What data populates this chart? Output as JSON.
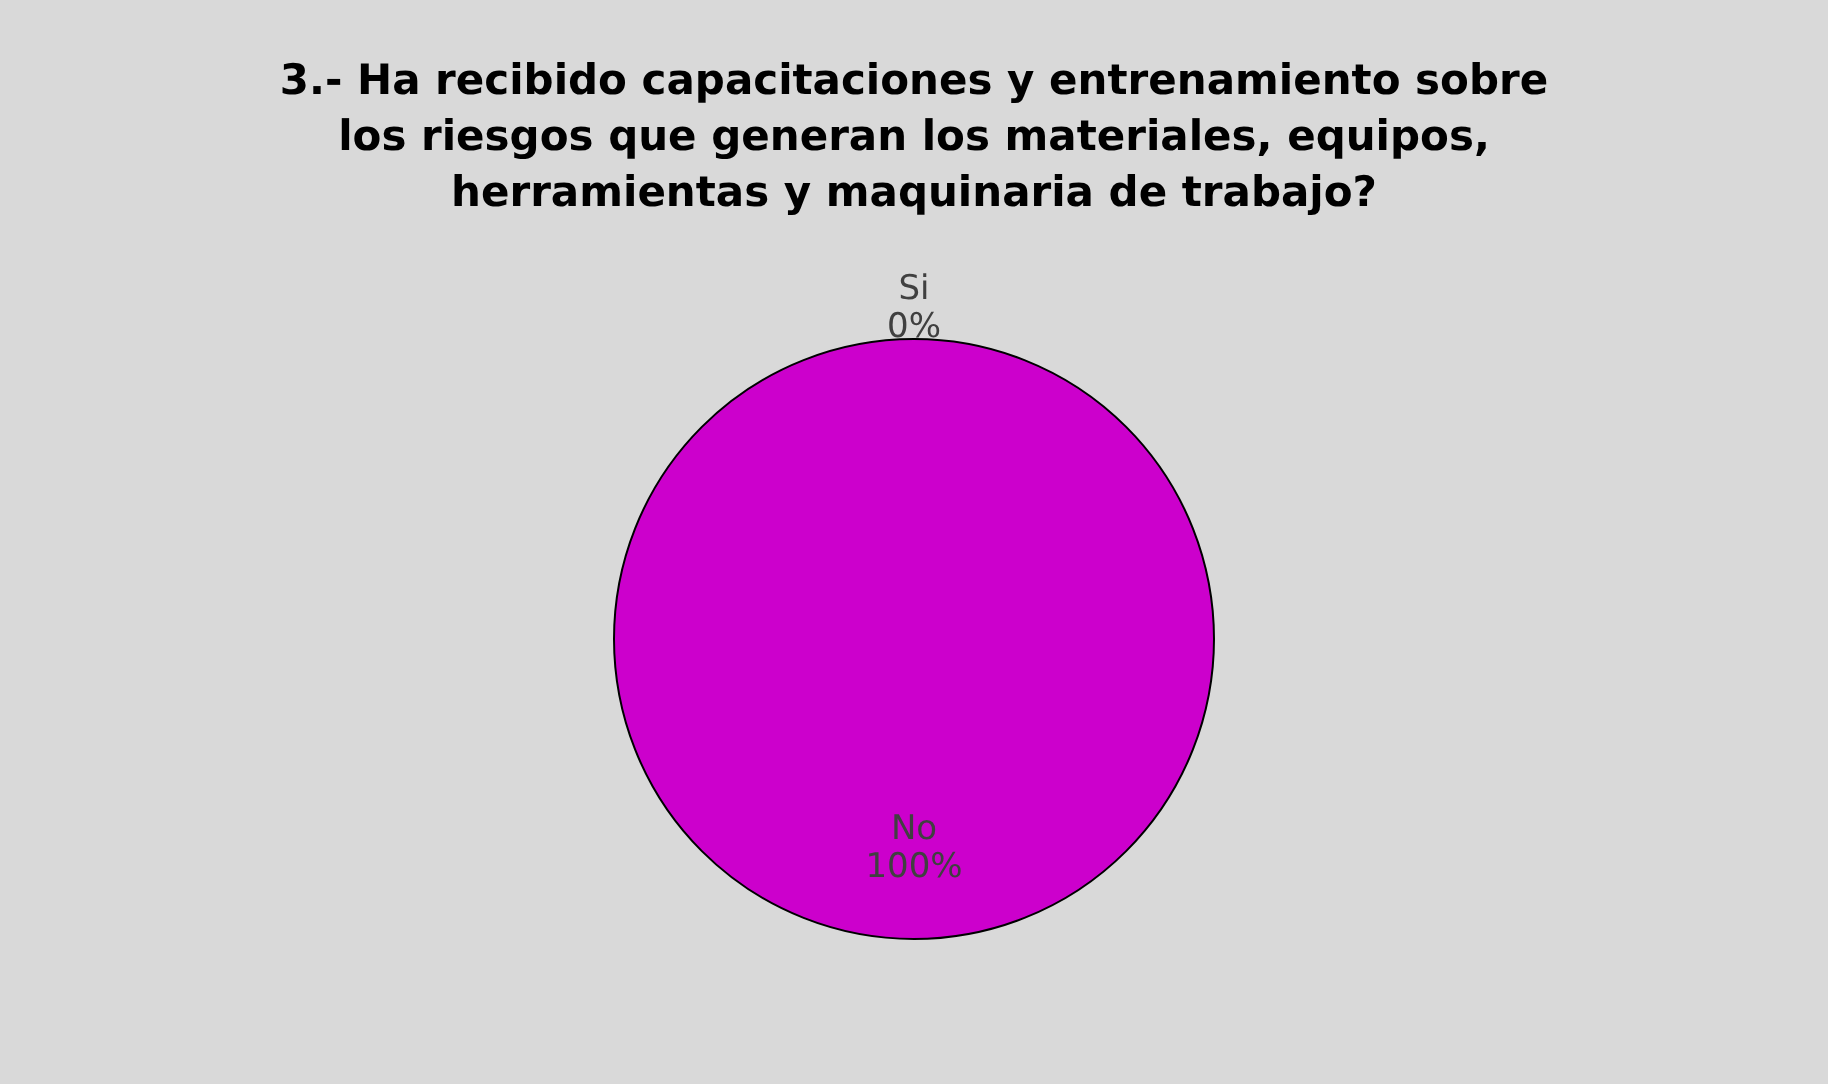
{
  "chart_data": {
    "type": "pie",
    "title": "3.- Ha recibido capacitaciones y entrenamiento sobre\nlos riesgos que generan los materiales, equipos,\nherramientas y maquinaria de trabajo?",
    "categories": [
      "Si",
      "No"
    ],
    "values": [
      0,
      100
    ],
    "colors": [
      "#4f81bd",
      "#cc00cc"
    ],
    "value_labels": [
      "0%",
      "100%"
    ],
    "legend": false
  }
}
